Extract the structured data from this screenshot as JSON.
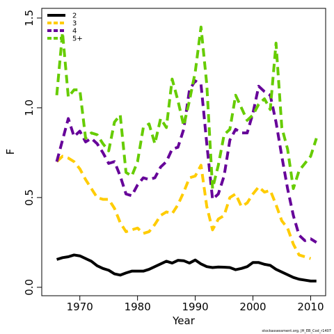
{
  "chart_data": {
    "type": "line",
    "xlabel": "Year",
    "ylabel": "F",
    "source": "stockassessment.org, JH_EB_Cod_r1407",
    "legend": "top-left",
    "xlim": [
      1963.4,
      2012.6
    ],
    "ylim": [
      -0.047,
      1.554
    ],
    "xticks": [
      1970,
      1980,
      1990,
      2000,
      2010
    ],
    "yticks": [
      {
        "value": 0,
        "label": "0.0"
      },
      0.5,
      {
        "value": 1,
        "label": "1.0"
      },
      1.5
    ],
    "x": [
      1966,
      1967,
      1968,
      1969,
      1970,
      1971,
      1972,
      1973,
      1974,
      1975,
      1976,
      1977,
      1978,
      1979,
      1980,
      1981,
      1982,
      1983,
      1984,
      1985,
      1986,
      1987,
      1988,
      1989,
      1990,
      1991,
      1992,
      1993,
      1994,
      1995,
      1996,
      1997,
      1998,
      1999,
      2000,
      2001,
      2002,
      2003,
      2004,
      2005,
      2006,
      2007,
      2008,
      2009,
      2010,
      2011
    ],
    "series": [
      {
        "name": "2",
        "color": "#000000",
        "linestyle": "solid",
        "values": [
          0.155,
          0.165,
          0.17,
          0.18,
          0.175,
          0.16,
          0.145,
          0.12,
          0.105,
          0.095,
          0.075,
          0.068,
          0.08,
          0.09,
          0.09,
          0.09,
          0.1,
          0.115,
          0.13,
          0.145,
          0.135,
          0.15,
          0.148,
          0.135,
          0.152,
          0.13,
          0.115,
          0.11,
          0.113,
          0.112,
          0.11,
          0.098,
          0.105,
          0.115,
          0.138,
          0.138,
          0.128,
          0.122,
          0.1,
          0.085,
          0.07,
          0.055,
          0.045,
          0.04,
          0.035,
          0.035
        ]
      },
      {
        "name": "3",
        "color": "#ffcc00",
        "linestyle": "dashed",
        "values": [
          0.7,
          0.73,
          0.72,
          0.7,
          0.66,
          0.6,
          0.55,
          0.5,
          0.49,
          0.49,
          0.44,
          0.36,
          0.31,
          0.32,
          0.33,
          0.3,
          0.31,
          0.35,
          0.4,
          0.42,
          0.41,
          0.46,
          0.53,
          0.61,
          0.62,
          0.68,
          0.45,
          0.32,
          0.38,
          0.4,
          0.5,
          0.52,
          0.45,
          0.47,
          0.52,
          0.56,
          0.53,
          0.54,
          0.46,
          0.37,
          0.33,
          0.24,
          0.18,
          0.17,
          0.16,
          null
        ]
      },
      {
        "name": "4",
        "color": "#660099",
        "linestyle": "dashed",
        "values": [
          0.7,
          0.82,
          0.94,
          0.84,
          0.87,
          0.81,
          0.83,
          0.8,
          0.75,
          0.69,
          0.7,
          0.62,
          0.52,
          0.51,
          0.57,
          0.61,
          0.6,
          0.61,
          0.67,
          0.7,
          0.77,
          0.78,
          0.88,
          1.1,
          1.15,
          1.13,
          0.8,
          0.49,
          0.52,
          0.62,
          0.82,
          0.88,
          0.86,
          0.86,
          0.97,
          1.12,
          1.09,
          1.07,
          0.92,
          0.73,
          0.55,
          0.4,
          0.29,
          0.26,
          0.27,
          0.25
        ]
      },
      {
        "name": "5+",
        "color": "#66cc00",
        "linestyle": "dashed",
        "values": [
          1.07,
          1.42,
          1.06,
          1.1,
          1.1,
          0.83,
          0.86,
          0.85,
          0.8,
          0.76,
          0.92,
          0.96,
          0.64,
          0.62,
          0.7,
          0.89,
          0.91,
          0.8,
          0.94,
          0.89,
          1.16,
          1.04,
          0.9,
          1.04,
          1.2,
          1.45,
          1.13,
          0.55,
          0.68,
          0.85,
          0.88,
          1.07,
          1.0,
          0.93,
          0.96,
          1.02,
          1.05,
          0.99,
          1.36,
          0.89,
          0.77,
          0.55,
          0.65,
          0.69,
          0.73,
          0.83
        ]
      }
    ]
  }
}
